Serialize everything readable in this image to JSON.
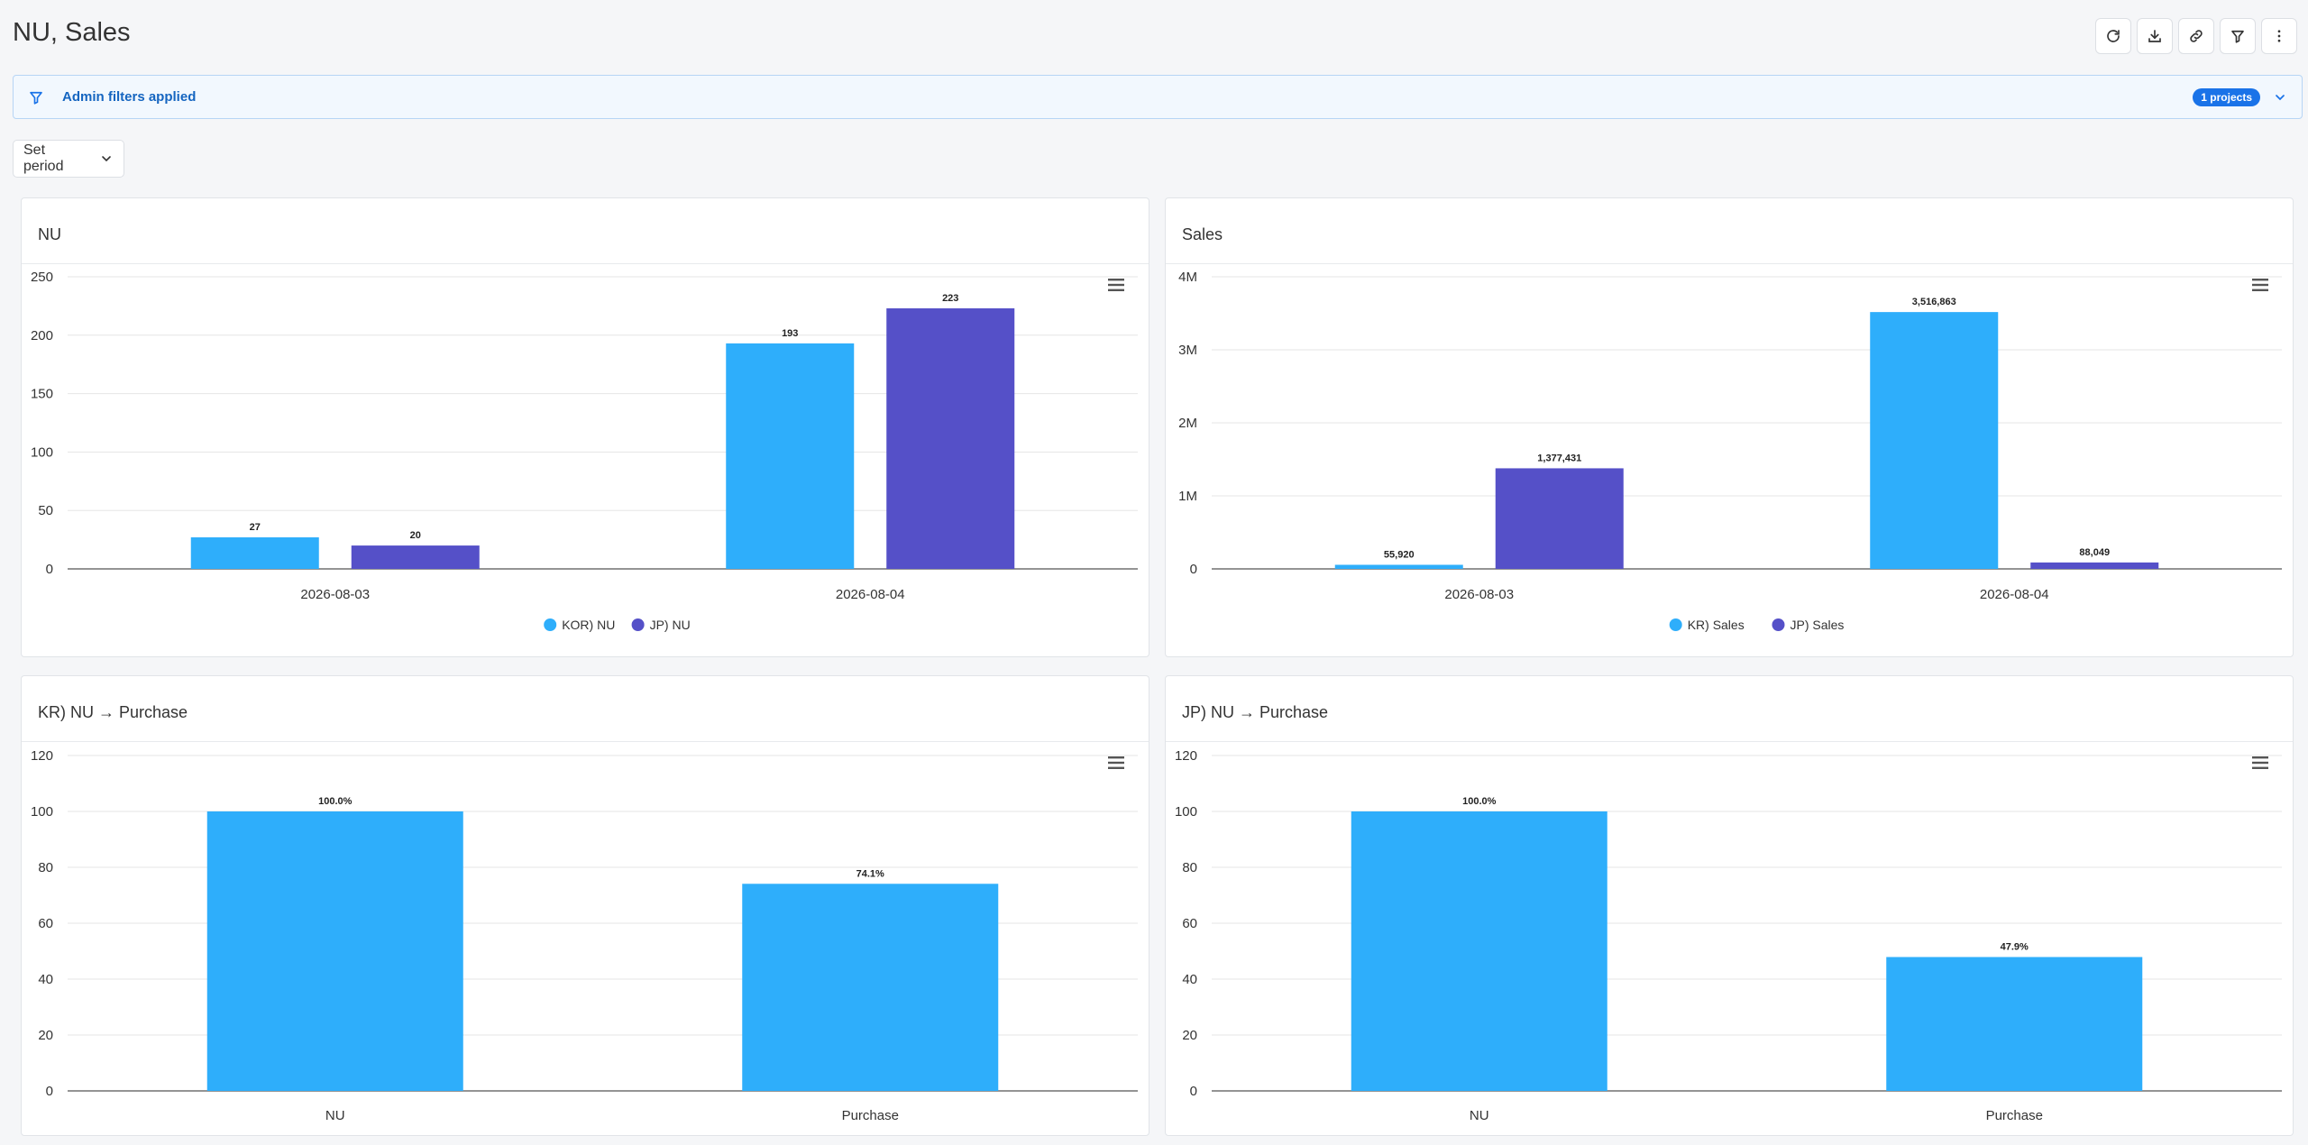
{
  "page": {
    "title": "NU, Sales"
  },
  "toolbar": {
    "icons": [
      "refresh-icon",
      "download-icon",
      "link-icon",
      "filter-icon",
      "more-vertical-icon"
    ]
  },
  "filterbar": {
    "text": "Admin filters applied",
    "badge": "1 projects"
  },
  "period": {
    "label": "Set period"
  },
  "colors": {
    "blue": "#2eaefb",
    "purple": "#5550c8",
    "accent": "#1a73e8"
  },
  "panels": [
    {
      "title": "NU",
      "chart_data": {
        "type": "bar",
        "categories": [
          "2026-08-03",
          "2026-08-04"
        ],
        "series": [
          {
            "name": "KOR) NU",
            "values": [
              27,
              193
            ],
            "labels": [
              "27",
              "193"
            ],
            "color": "#2eaefb"
          },
          {
            "name": "JP) NU",
            "values": [
              20,
              223
            ],
            "labels": [
              "20",
              "223"
            ],
            "color": "#5550c8"
          }
        ],
        "ylim": [
          0,
          250
        ],
        "yticks": [
          0,
          50,
          100,
          150,
          200,
          250
        ],
        "ytick_labels": [
          "0",
          "50",
          "100",
          "150",
          "200",
          "250"
        ],
        "grid": true,
        "legend": "bottom-center"
      }
    },
    {
      "title": "Sales",
      "chart_data": {
        "type": "bar",
        "categories": [
          "2026-08-03",
          "2026-08-04"
        ],
        "series": [
          {
            "name": "KR) Sales",
            "values": [
              55920,
              3516863
            ],
            "labels": [
              "55,920",
              "3,516,863"
            ],
            "color": "#2eaefb"
          },
          {
            "name": "JP) Sales",
            "values": [
              1377431,
              88049
            ],
            "labels": [
              "1,377,431",
              "88,049"
            ],
            "color": "#5550c8"
          }
        ],
        "ylim": [
          0,
          4000000
        ],
        "yticks": [
          0,
          1000000,
          2000000,
          3000000,
          4000000
        ],
        "ytick_labels": [
          "0",
          "1M",
          "2M",
          "3M",
          "4M"
        ],
        "grid": true,
        "legend": "bottom-center"
      }
    },
    {
      "title": "KR) NU → Purchase",
      "chart_data": {
        "type": "bar",
        "categories": [
          "NU",
          "Purchase"
        ],
        "series": [
          {
            "values": [
              100,
              74.1
            ],
            "labels": [
              "100.0%",
              "74.1%"
            ],
            "color": "#2eaefb"
          }
        ],
        "ylim": [
          0,
          120
        ],
        "yticks": [
          0,
          20,
          40,
          60,
          80,
          100,
          120
        ],
        "ytick_labels": [
          "0",
          "20",
          "40",
          "60",
          "80",
          "100",
          "120"
        ],
        "grid": true
      }
    },
    {
      "title": "JP) NU → Purchase",
      "chart_data": {
        "type": "bar",
        "categories": [
          "NU",
          "Purchase"
        ],
        "series": [
          {
            "values": [
              100,
              47.9
            ],
            "labels": [
              "100.0%",
              "47.9%"
            ],
            "color": "#2eaefb"
          }
        ],
        "ylim": [
          0,
          120
        ],
        "yticks": [
          0,
          20,
          40,
          60,
          80,
          100,
          120
        ],
        "ytick_labels": [
          "0",
          "20",
          "40",
          "60",
          "80",
          "100",
          "120"
        ],
        "grid": true
      }
    }
  ]
}
